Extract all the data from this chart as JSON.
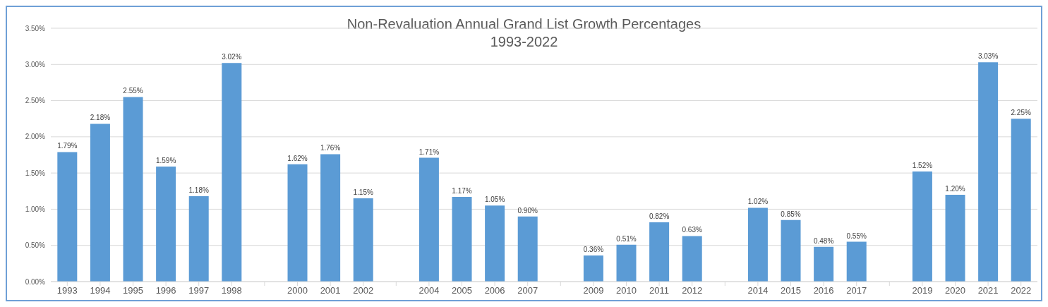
{
  "chart_data": {
    "type": "bar",
    "title": "Non-Revaluation Annual Grand List Growth Percentages",
    "subtitle": "1993-2022",
    "categories": [
      "1993",
      "1994",
      "1995",
      "1996",
      "1997",
      "1998",
      null,
      "2000",
      "2001",
      "2002",
      null,
      "2004",
      "2005",
      "2006",
      "2007",
      null,
      "2009",
      "2010",
      "2011",
      "2012",
      null,
      "2014",
      "2015",
      "2016",
      "2017",
      null,
      "2019",
      "2020",
      "2021",
      "2022"
    ],
    "values": [
      1.79,
      2.18,
      2.55,
      1.59,
      1.18,
      3.02,
      null,
      1.62,
      1.76,
      1.15,
      null,
      1.71,
      1.17,
      1.05,
      0.9,
      null,
      0.36,
      0.51,
      0.82,
      0.63,
      null,
      1.02,
      0.85,
      0.48,
      0.55,
      null,
      1.52,
      1.2,
      3.03,
      2.25
    ],
    "value_labels": [
      "1.79%",
      "2.18%",
      "2.55%",
      "1.59%",
      "1.18%",
      "3.02%",
      null,
      "1.62%",
      "1.76%",
      "1.15%",
      null,
      "1.71%",
      "1.17%",
      "1.05%",
      "0.90%",
      null,
      "0.36%",
      "0.51%",
      "0.82%",
      "0.63%",
      null,
      "1.02%",
      "0.85%",
      "0.48%",
      "0.55%",
      null,
      "1.52%",
      "1.20%",
      "3.03%",
      "2.25%"
    ],
    "color": "#5b9bd5",
    "ylim": [
      0,
      3.5
    ],
    "yticks": [
      {
        "value": 0,
        "label": "0.00%"
      },
      {
        "value": 0.5,
        "label": "0.50%"
      },
      {
        "value": 1,
        "label": "1.00%"
      },
      {
        "value": 1.5,
        "label": "1.50%"
      },
      {
        "value": 2,
        "label": "2.00%"
      },
      {
        "value": 2.5,
        "label": "2.50%"
      },
      {
        "value": 3,
        "label": "3.00%"
      },
      {
        "value": 3.5,
        "label": "3.50%"
      }
    ],
    "grid": "y",
    "legend": false
  }
}
